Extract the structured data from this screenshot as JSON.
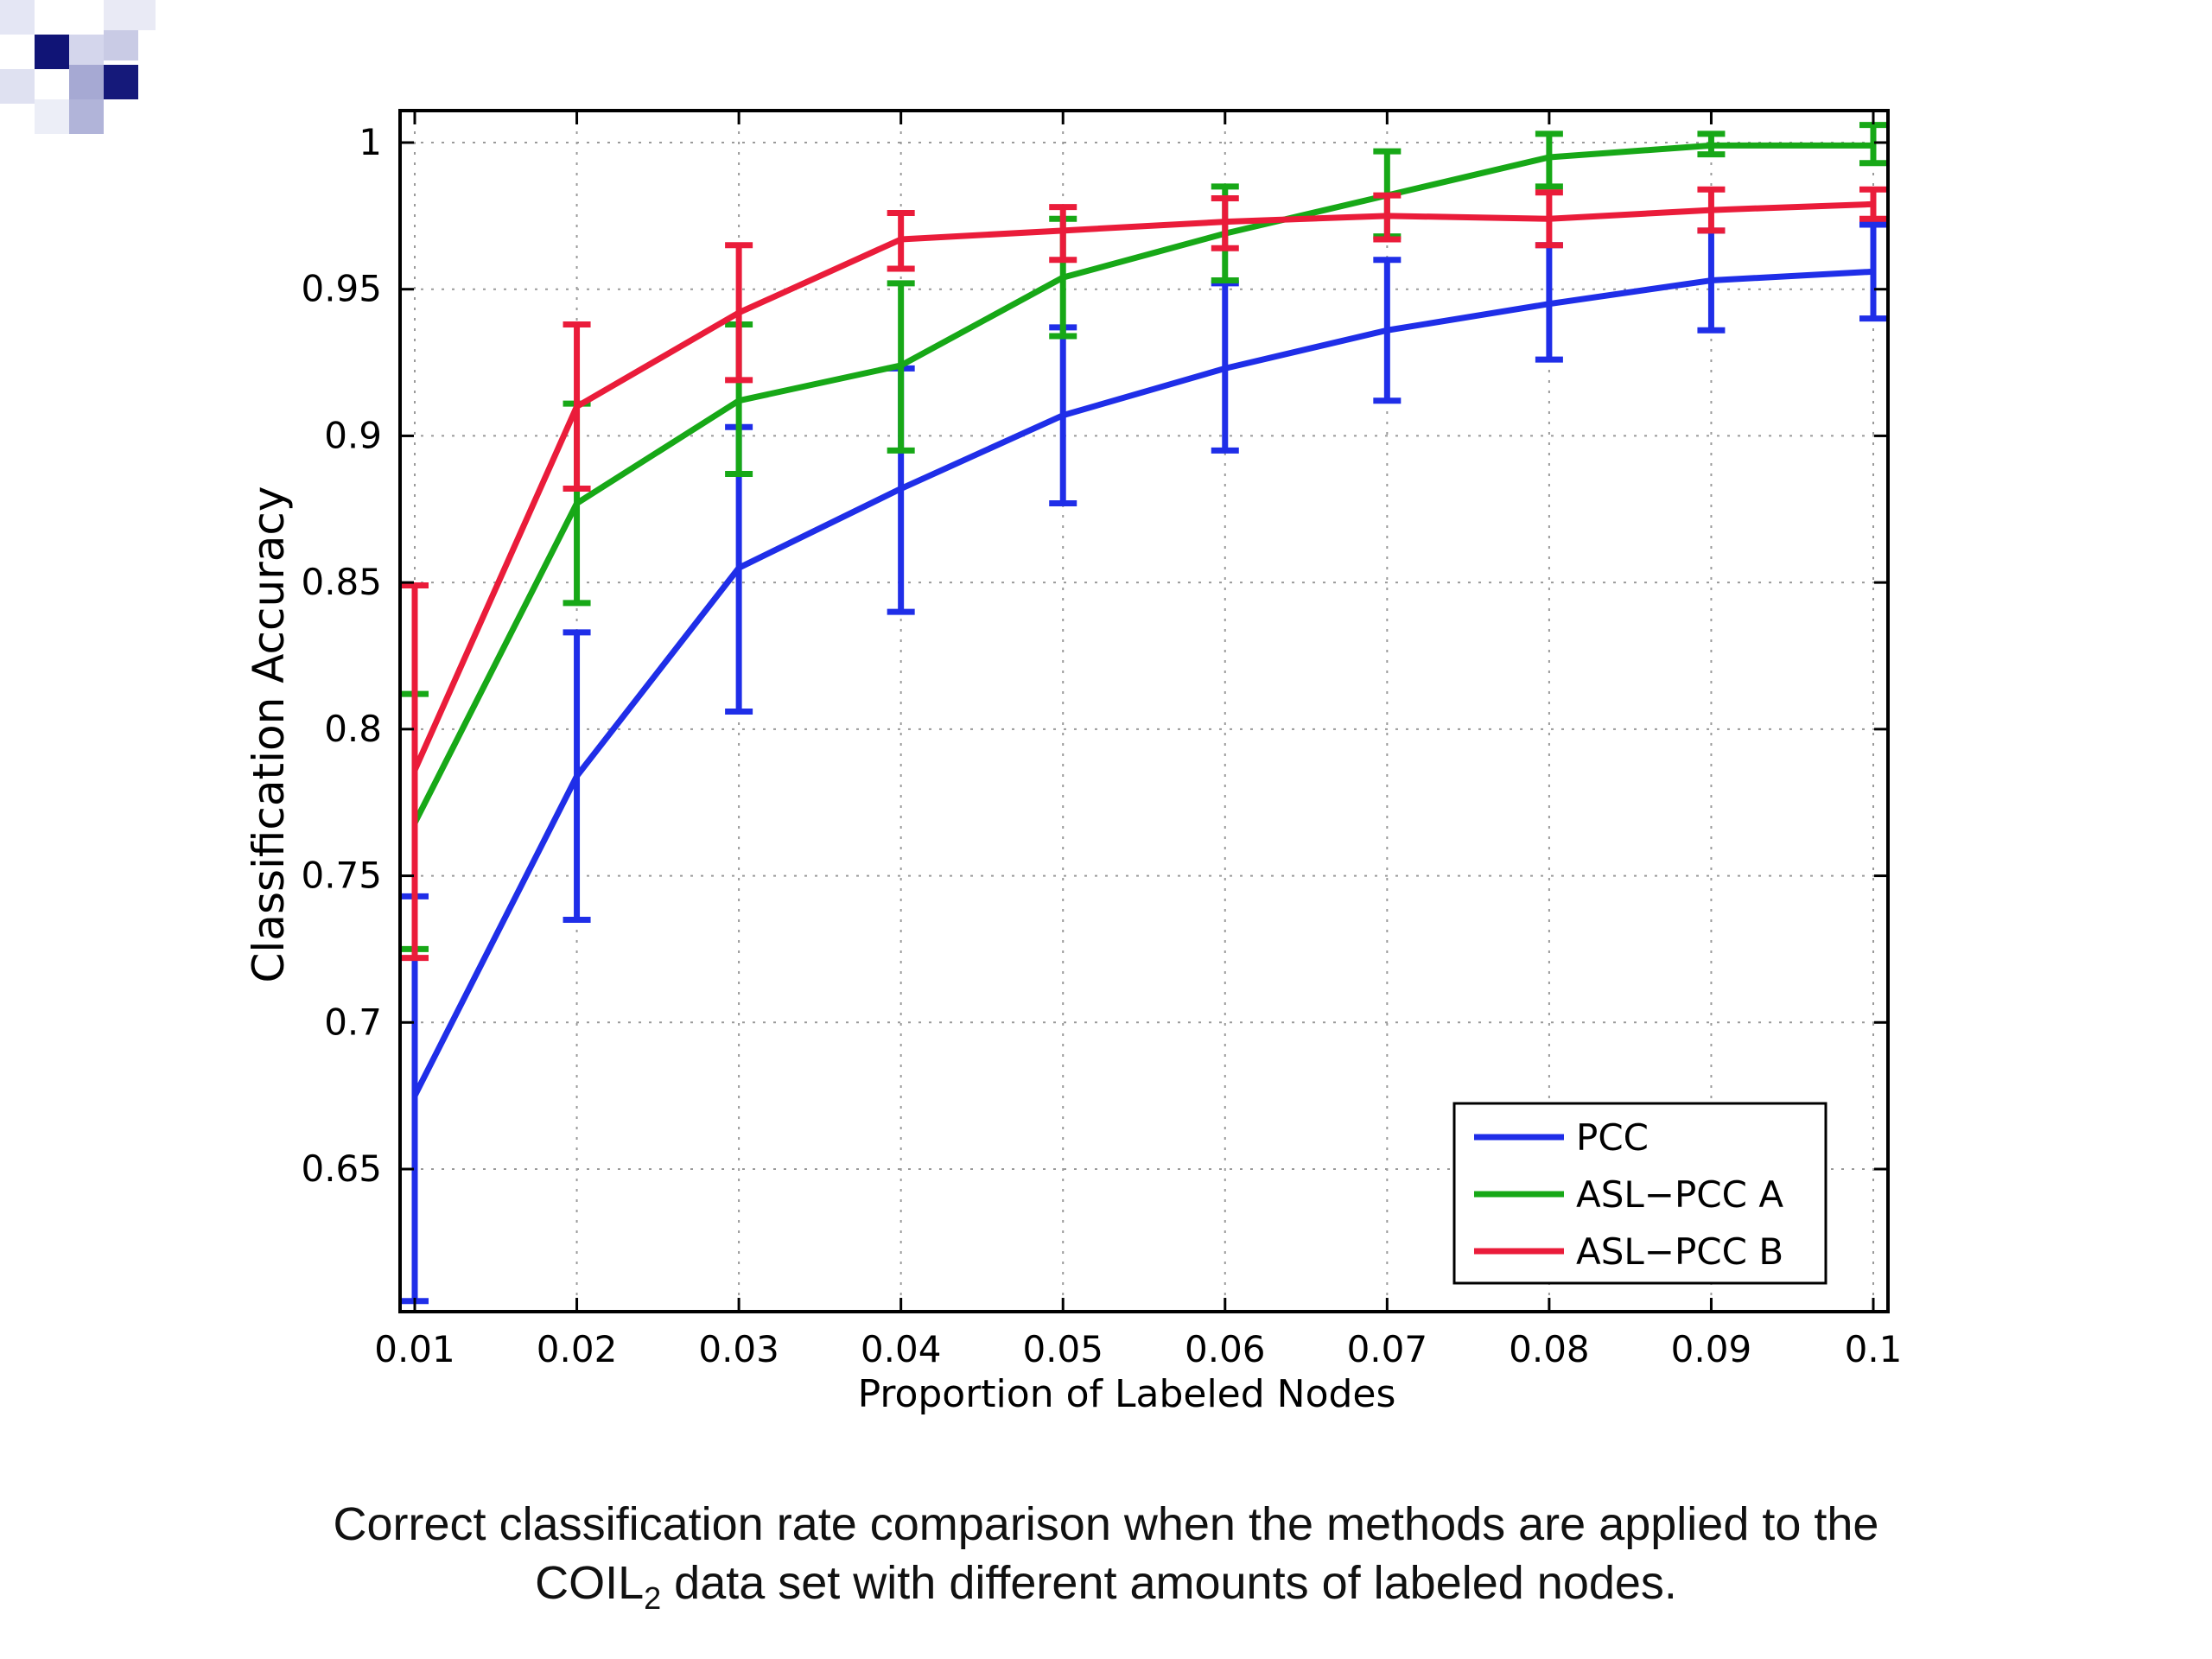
{
  "chart_data": {
    "type": "line",
    "xlabel": "Proportion of Labeled Nodes",
    "ylabel": "Classification Accuracy",
    "xlim": [
      0.01,
      0.1
    ],
    "ylim": [
      0.6,
      1.01
    ],
    "xticks": [
      "0.01",
      "0.02",
      "0.03",
      "0.04",
      "0.05",
      "0.06",
      "0.07",
      "0.08",
      "0.09",
      "0.1"
    ],
    "yticks": [
      "0.65",
      "0.7",
      "0.75",
      "0.8",
      "0.85",
      "0.9",
      "0.95",
      "1"
    ],
    "grid": true,
    "legend_position": "bottom-right",
    "x": [
      0.01,
      0.02,
      0.03,
      0.04,
      0.05,
      0.06,
      0.07,
      0.08,
      0.09,
      0.1
    ],
    "series": [
      {
        "name": "PCC",
        "color": "#1f2ee8",
        "values": [
          0.675,
          0.784,
          0.855,
          0.882,
          0.907,
          0.923,
          0.936,
          0.945,
          0.953,
          0.956
        ],
        "err_low": [
          0.605,
          0.735,
          0.806,
          0.84,
          0.877,
          0.895,
          0.912,
          0.926,
          0.936,
          0.94
        ],
        "err_high": [
          0.743,
          0.833,
          0.903,
          0.923,
          0.937,
          0.952,
          0.96,
          0.965,
          0.97,
          0.972
        ]
      },
      {
        "name": "ASL−PCC A",
        "color": "#17a817",
        "values": [
          0.768,
          0.877,
          0.912,
          0.924,
          0.954,
          0.969,
          0.982,
          0.995,
          0.999,
          0.999
        ],
        "err_low": [
          0.725,
          0.843,
          0.887,
          0.895,
          0.934,
          0.953,
          0.968,
          0.985,
          0.996,
          0.993
        ],
        "err_high": [
          0.812,
          0.911,
          0.938,
          0.952,
          0.974,
          0.985,
          0.997,
          1.003,
          1.003,
          1.006
        ]
      },
      {
        "name": "ASL−PCC B",
        "color": "#ea1c3a",
        "values": [
          0.786,
          0.91,
          0.942,
          0.967,
          0.97,
          0.973,
          0.975,
          0.974,
          0.977,
          0.979
        ],
        "err_low": [
          0.722,
          0.882,
          0.919,
          0.957,
          0.96,
          0.964,
          0.967,
          0.965,
          0.97,
          0.974
        ],
        "err_high": [
          0.849,
          0.938,
          0.965,
          0.976,
          0.978,
          0.981,
          0.982,
          0.983,
          0.984,
          0.984
        ]
      }
    ]
  },
  "caption": {
    "line1": "Correct classification rate comparison when the methods are applied to the",
    "line2_prefix": "COIL",
    "line2_sub": "2",
    "line2_suffix": " data set with different amounts of labeled nodes."
  }
}
